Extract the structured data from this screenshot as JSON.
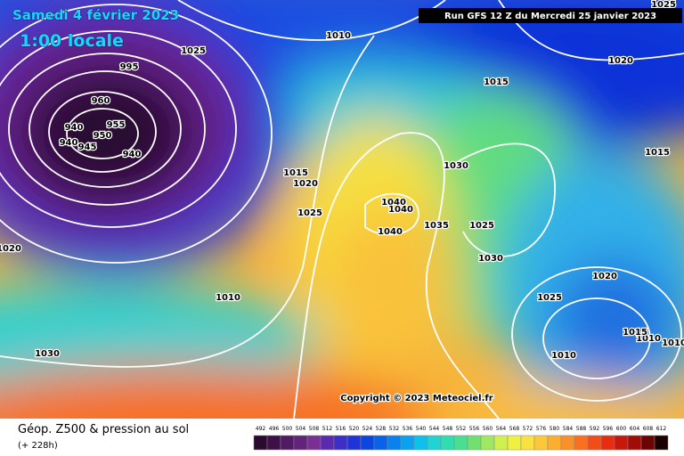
{
  "header": {
    "date": "Samedi 4 février 2023",
    "time": "1:00 locale",
    "run": "Run GFS 12 Z du Mercredi 25 janvier 2023",
    "copyright": "Copyright © 2023 Meteociel.fr"
  },
  "footer": {
    "title": "Géop. Z500 & pression au sol",
    "lead": "(+ 228h)"
  },
  "scale": {
    "labels": [
      492,
      496,
      500,
      504,
      508,
      512,
      516,
      520,
      524,
      528,
      532,
      536,
      540,
      544,
      548,
      552,
      556,
      560,
      564,
      568,
      572,
      576,
      580,
      584,
      588,
      592,
      596,
      600,
      604,
      608,
      612
    ],
    "colors": [
      "#2b0a2f",
      "#3f0f48",
      "#521a63",
      "#63237a",
      "#7a2f95",
      "#5a2ab0",
      "#3d2ec8",
      "#1f33d8",
      "#0d45e0",
      "#0a62e8",
      "#0a82ee",
      "#0aa2f0",
      "#10c0ec",
      "#20d4d4",
      "#30dcb0",
      "#48e090",
      "#70e070",
      "#a0e860",
      "#cff050",
      "#f0f040",
      "#fae040",
      "#fcc838",
      "#fcae30",
      "#fa9028",
      "#f87020",
      "#f44c18",
      "#e82c10",
      "#c8180c",
      "#a00c08",
      "#6c0404",
      "#1a0000"
    ]
  },
  "isobars": [
    "1010",
    "1015",
    "1020",
    "1025",
    "1025",
    "1015",
    "940",
    "940",
    "945",
    "950",
    "955",
    "940",
    "960",
    "995",
    "1010",
    "1030",
    "1020",
    "1015",
    "1020",
    "1025",
    "1040",
    "1040",
    "1040",
    "1035",
    "1030",
    "1025",
    "1030",
    "1020",
    "1025",
    "1010",
    "1010",
    "1010",
    "1015"
  ]
}
